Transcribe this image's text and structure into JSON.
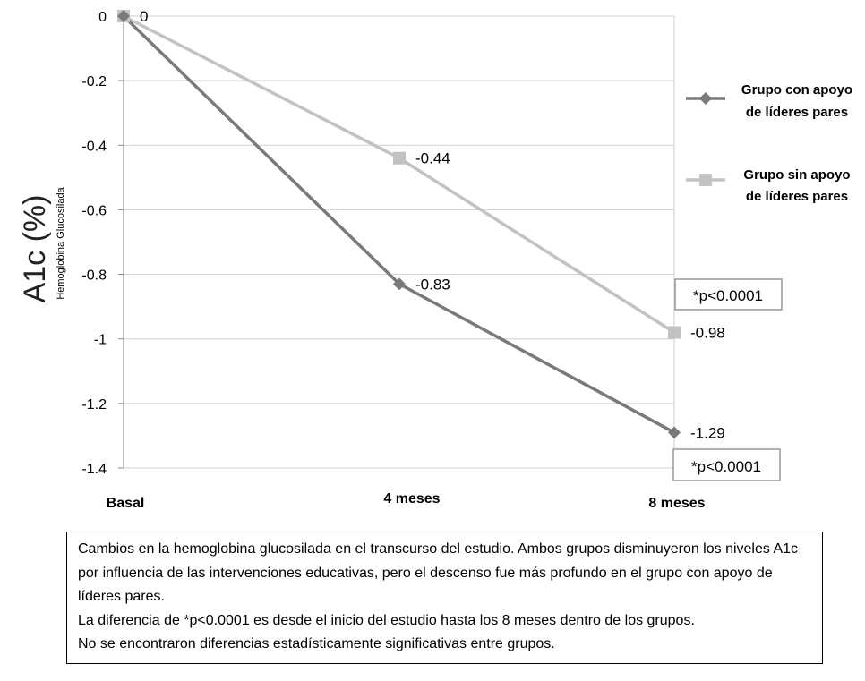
{
  "chart_data": {
    "type": "line",
    "categories": [
      "Basal",
      "4 meses",
      "8 meses"
    ],
    "series": [
      {
        "name": "Grupo con apoyo de líderes pares",
        "values": [
          0,
          -0.83,
          -1.29
        ],
        "labels": [
          "",
          "-0.83",
          "-1.29"
        ],
        "color": "#7a7a7a",
        "marker": "diamond"
      },
      {
        "name": "Grupo sin apoyo de líderes pares",
        "values": [
          0,
          -0.44,
          -0.98
        ],
        "labels": [
          "0",
          "-0.44",
          "-0.98"
        ],
        "color": "#c2c2c2",
        "marker": "square"
      }
    ],
    "ylabel": "A1c (%)",
    "ylabel_sub": "Hemoglobina Glucosilada",
    "ylim": [
      -1.4,
      0
    ],
    "yticks": [
      0,
      -0.2,
      -0.4,
      -0.6,
      -0.8,
      -1,
      -1.2,
      -1.4
    ],
    "ytick_labels": [
      "0",
      "-0.2",
      "-0.4",
      "-0.6",
      "-0.8",
      "-1",
      "-1.2",
      "-1.4"
    ],
    "grid": true,
    "legend": {
      "position": "right",
      "entries": [
        {
          "line1": "Grupo con apoyo",
          "line2": "de líderes pares"
        },
        {
          "line1": "Grupo sin apoyo",
          "line2": "de líderes pares"
        }
      ]
    },
    "annotations": [
      "*p<0.0001",
      "*p<0.0001"
    ]
  },
  "caption": {
    "paragraph1": "Cambios en la hemoglobina glucosilada en el transcurso del estudio. Ambos grupos disminuyeron los niveles A1c por influencia de las intervenciones educativas, pero el descenso fue más profundo en el grupo con apoyo de líderes pares.",
    "paragraph2": "La diferencia de *p<0.0001 es desde el inicio del estudio hasta los 8 meses dentro de los grupos.",
    "paragraph3": "No se encontraron diferencias estadísticamente significativas entre grupos."
  }
}
